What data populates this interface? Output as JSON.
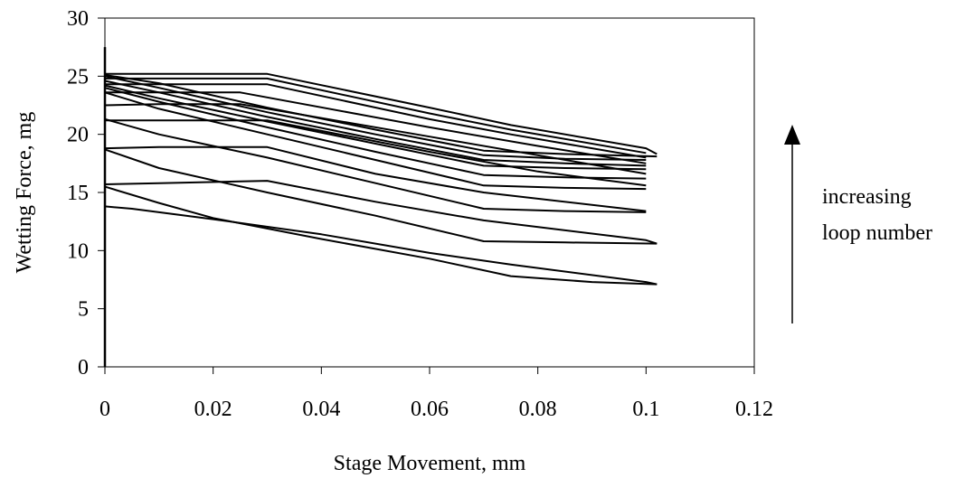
{
  "chart_data": {
    "type": "line",
    "xlabel": "Stage Movement, mm",
    "ylabel": "Wetting Force, mg",
    "xlim": [
      0,
      0.12
    ],
    "ylim": [
      0,
      30
    ],
    "xticks": [
      "0",
      "0.02",
      "0.04",
      "0.06",
      "0.08",
      "0.1",
      "0.12"
    ],
    "yticks": [
      "0",
      "5",
      "10",
      "15",
      "20",
      "25",
      "30"
    ],
    "grid": false,
    "legend": "none",
    "annotation": {
      "lines": [
        "increasing",
        "loop number"
      ],
      "arrow": "up"
    },
    "vertical_line": {
      "x": 0,
      "y": [
        0,
        27.5
      ]
    },
    "series": [
      {
        "x": [
          0,
          0.01,
          0.03,
          0.06,
          0.075,
          0.1,
          0.102
        ],
        "y": [
          25.2,
          25.2,
          25.2,
          22.3,
          20.8,
          18.8,
          18.3
        ]
      },
      {
        "x": [
          0.102,
          0.085,
          0.07,
          0.05,
          0.03,
          0.01,
          0
        ],
        "y": [
          18.1,
          18.3,
          18.6,
          20.4,
          22.3,
          24.4,
          25.1
        ]
      },
      {
        "x": [
          0,
          0.01,
          0.03,
          0.06,
          0.075,
          0.1
        ],
        "y": [
          24.8,
          24.8,
          24.8,
          21.8,
          20.4,
          18.4
        ]
      },
      {
        "x": [
          0.1,
          0.085,
          0.07,
          0.05,
          0.03,
          0.01,
          0
        ],
        "y": [
          17.8,
          17.9,
          18.2,
          20.0,
          21.9,
          24.0,
          25.0
        ]
      },
      {
        "x": [
          0,
          0.01,
          0.03,
          0.06,
          0.075,
          0.1
        ],
        "y": [
          24.3,
          24.3,
          24.3,
          21.3,
          20.0,
          18.0
        ]
      },
      {
        "x": [
          0.1,
          0.085,
          0.07,
          0.05,
          0.03,
          0.01,
          0
        ],
        "y": [
          17.3,
          17.5,
          17.8,
          19.6,
          21.5,
          23.6,
          24.6
        ]
      },
      {
        "x": [
          0,
          0.01,
          0.025,
          0.06,
          0.08,
          0.1
        ],
        "y": [
          23.6,
          23.6,
          23.6,
          20.6,
          19.0,
          17.5
        ]
      },
      {
        "x": [
          0.1,
          0.085,
          0.07,
          0.05,
          0.03,
          0.01,
          0
        ],
        "y": [
          17.0,
          17.1,
          17.3,
          19.2,
          21.1,
          23.1,
          24.2
        ]
      },
      {
        "x": [
          0,
          0.01,
          0.025,
          0.06,
          0.08,
          0.1
        ],
        "y": [
          22.5,
          22.6,
          22.6,
          19.8,
          18.2,
          16.6
        ]
      },
      {
        "x": [
          0.1,
          0.085,
          0.07,
          0.05,
          0.03,
          0.01,
          0
        ],
        "y": [
          16.2,
          16.3,
          16.5,
          18.5,
          20.6,
          22.8,
          24.0
        ]
      },
      {
        "x": [
          0,
          0.01,
          0.03,
          0.06,
          0.08,
          0.1
        ],
        "y": [
          21.2,
          21.2,
          21.2,
          18.5,
          16.8,
          15.6
        ]
      },
      {
        "x": [
          0.1,
          0.085,
          0.07,
          0.05,
          0.03,
          0.01,
          0
        ],
        "y": [
          15.3,
          15.4,
          15.6,
          17.8,
          20.0,
          22.2,
          23.6
        ]
      },
      {
        "x": [
          0,
          0.01,
          0.03,
          0.05,
          0.07,
          0.1
        ],
        "y": [
          18.8,
          18.9,
          18.9,
          16.6,
          15.0,
          13.4
        ]
      },
      {
        "x": [
          0.1,
          0.085,
          0.07,
          0.05,
          0.03,
          0.01,
          0
        ],
        "y": [
          13.3,
          13.4,
          13.6,
          15.8,
          18.0,
          20.0,
          21.3
        ]
      },
      {
        "x": [
          0,
          0.01,
          0.03,
          0.05,
          0.07,
          0.1,
          0.102
        ],
        "y": [
          15.7,
          15.8,
          16.0,
          14.2,
          12.6,
          10.9,
          10.6
        ]
      },
      {
        "x": [
          0.102,
          0.085,
          0.07,
          0.05,
          0.03,
          0.01,
          0
        ],
        "y": [
          10.6,
          10.7,
          10.8,
          13.0,
          15.0,
          17.1,
          18.7
        ]
      },
      {
        "x": [
          0,
          0.005,
          0.02,
          0.04,
          0.06,
          0.075,
          0.1,
          0.102
        ],
        "y": [
          13.8,
          13.6,
          12.7,
          11.4,
          9.8,
          8.8,
          7.3,
          7.1
        ]
      },
      {
        "x": [
          0.102,
          0.09,
          0.075,
          0.06,
          0.04,
          0.02,
          0.01,
          0
        ],
        "y": [
          7.1,
          7.3,
          7.8,
          9.3,
          11.0,
          12.8,
          14.1,
          15.5
        ]
      }
    ]
  }
}
